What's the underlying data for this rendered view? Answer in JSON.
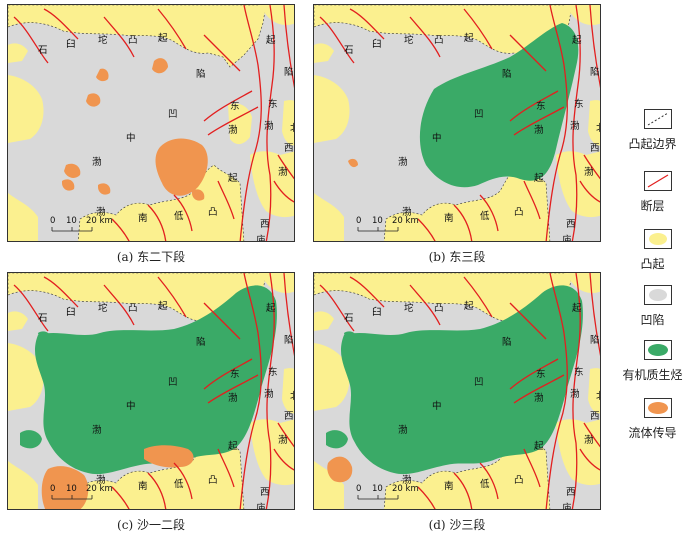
{
  "panels": [
    {
      "caption": "(a) 东二下段",
      "organic": "none",
      "fluid": "scattered"
    },
    {
      "caption": "(b) 东三段",
      "organic": "central",
      "fluid": "minor"
    },
    {
      "caption": "(c) 沙一二段",
      "organic": "broad",
      "fluid": "southwest"
    },
    {
      "caption": "(d) 沙三段",
      "organic": "broad",
      "fluid": "southwest-small"
    }
  ],
  "labels": {
    "shi": "石",
    "jiu": "臼",
    "tuo": "坨",
    "tu": "凸",
    "qi": "起",
    "xian": "陷",
    "ao": "凹",
    "zhong": "中",
    "bo": "渤",
    "dong": "东",
    "nan": "南",
    "di": "低",
    "bei": "北",
    "xi": "西",
    "miao": "庙"
  },
  "scalebar": {
    "ticks": [
      "0",
      "10",
      "20 km"
    ]
  },
  "legend": [
    {
      "label": "凸起边界",
      "type": "boundary"
    },
    {
      "label": "断层",
      "type": "fault"
    },
    {
      "label": "凸起",
      "type": "uplift"
    },
    {
      "label": "凹陷",
      "type": "depression"
    },
    {
      "label": "有机质生烃",
      "type": "organic"
    },
    {
      "label": "流体传导",
      "type": "fluid"
    }
  ],
  "colors": {
    "uplift": "#fbf08f",
    "depression": "#d9d9d9",
    "organic": "#3aaa67",
    "fluid": "#f0954f",
    "fault": "#e21f1f",
    "boundary": "#333333"
  }
}
